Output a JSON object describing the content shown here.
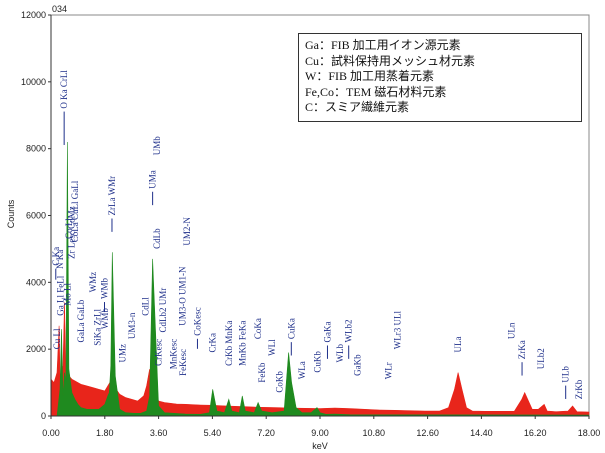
{
  "chart_data": {
    "type": "area",
    "top_label": "034",
    "xlabel": "keV",
    "ylabel": "Counts",
    "xlim": [
      0.0,
      18.0
    ],
    "ylim": [
      0,
      12000
    ],
    "x_ticks": [
      "0.00",
      "1.80",
      "3.60",
      "5.40",
      "7.20",
      "9.00",
      "10.80",
      "12.60",
      "14.40",
      "16.20",
      "18.00"
    ],
    "y_ticks": [
      "0",
      "2000",
      "4000",
      "6000",
      "8000",
      "10000",
      "12000"
    ],
    "colors": {
      "red": "#e8251b",
      "green": "#1f8a1f",
      "label": "#1e2f8a"
    },
    "series": [
      {
        "color": "red",
        "points": [
          [
            0.0,
            1100
          ],
          [
            0.1,
            1000
          ],
          [
            0.2,
            1300
          ],
          [
            0.27,
            2700
          ],
          [
            0.3,
            1200
          ],
          [
            0.4,
            1500
          ],
          [
            0.45,
            3400
          ],
          [
            0.5,
            1400
          ],
          [
            0.6,
            1200
          ],
          [
            0.7,
            1100
          ],
          [
            0.8,
            1050
          ],
          [
            1.0,
            950
          ],
          [
            1.2,
            900
          ],
          [
            1.4,
            850
          ],
          [
            1.6,
            800
          ],
          [
            1.8,
            750
          ],
          [
            1.9,
            900
          ],
          [
            2.0,
            1050
          ],
          [
            2.1,
            900
          ],
          [
            2.3,
            650
          ],
          [
            2.5,
            550
          ],
          [
            2.7,
            500
          ],
          [
            2.9,
            450
          ],
          [
            3.1,
            600
          ],
          [
            3.2,
            900
          ],
          [
            3.3,
            1400
          ],
          [
            3.4,
            900
          ],
          [
            3.6,
            450
          ],
          [
            3.8,
            400
          ],
          [
            4.0,
            380
          ],
          [
            4.2,
            360
          ],
          [
            4.5,
            350
          ],
          [
            5.0,
            330
          ],
          [
            5.4,
            320
          ],
          [
            5.9,
            300
          ],
          [
            6.4,
            280
          ],
          [
            7.0,
            260
          ],
          [
            7.5,
            250
          ],
          [
            8.0,
            240
          ],
          [
            8.5,
            230
          ],
          [
            9.0,
            220
          ],
          [
            9.5,
            240
          ],
          [
            10.0,
            220
          ],
          [
            10.5,
            200
          ],
          [
            11.0,
            180
          ],
          [
            11.5,
            170
          ],
          [
            12.0,
            160
          ],
          [
            12.5,
            150
          ],
          [
            13.0,
            150
          ],
          [
            13.3,
            250
          ],
          [
            13.5,
            800
          ],
          [
            13.62,
            1300
          ],
          [
            13.75,
            800
          ],
          [
            13.9,
            250
          ],
          [
            14.1,
            150
          ],
          [
            14.5,
            140
          ],
          [
            15.0,
            140
          ],
          [
            15.5,
            140
          ],
          [
            15.75,
            500
          ],
          [
            15.85,
            700
          ],
          [
            15.95,
            500
          ],
          [
            16.1,
            200
          ],
          [
            16.3,
            200
          ],
          [
            16.5,
            350
          ],
          [
            16.6,
            150
          ],
          [
            16.9,
            130
          ],
          [
            17.3,
            150
          ],
          [
            17.45,
            300
          ],
          [
            17.6,
            130
          ],
          [
            18.0,
            120
          ]
        ]
      },
      {
        "color": "green",
        "points": [
          [
            0.0,
            0
          ],
          [
            0.2,
            0
          ],
          [
            0.3,
            800
          ],
          [
            0.35,
            2600
          ],
          [
            0.4,
            600
          ],
          [
            0.45,
            1300
          ],
          [
            0.5,
            1000
          ],
          [
            0.55,
            8200
          ],
          [
            0.6,
            1400
          ],
          [
            0.7,
            700
          ],
          [
            0.8,
            500
          ],
          [
            0.9,
            350
          ],
          [
            1.0,
            250
          ],
          [
            1.2,
            200
          ],
          [
            1.4,
            200
          ],
          [
            1.6,
            200
          ],
          [
            1.8,
            350
          ],
          [
            1.9,
            600
          ],
          [
            1.95,
            700
          ],
          [
            2.0,
            1500
          ],
          [
            2.05,
            4900
          ],
          [
            2.15,
            1200
          ],
          [
            2.3,
            200
          ],
          [
            2.5,
            100
          ],
          [
            2.8,
            80
          ],
          [
            3.0,
            80
          ],
          [
            3.2,
            150
          ],
          [
            3.3,
            600
          ],
          [
            3.4,
            4700
          ],
          [
            3.5,
            2500
          ],
          [
            3.6,
            300
          ],
          [
            3.8,
            100
          ],
          [
            4.5,
            60
          ],
          [
            5.0,
            50
          ],
          [
            5.3,
            100
          ],
          [
            5.41,
            800
          ],
          [
            5.55,
            150
          ],
          [
            5.8,
            100
          ],
          [
            5.95,
            500
          ],
          [
            6.05,
            150
          ],
          [
            6.3,
            100
          ],
          [
            6.4,
            600
          ],
          [
            6.5,
            150
          ],
          [
            6.8,
            100
          ],
          [
            6.93,
            400
          ],
          [
            7.05,
            150
          ],
          [
            7.4,
            100
          ],
          [
            7.8,
            150
          ],
          [
            7.95,
            1900
          ],
          [
            8.05,
            1000
          ],
          [
            8.2,
            250
          ],
          [
            8.4,
            100
          ],
          [
            8.7,
            100
          ],
          [
            8.9,
            250
          ],
          [
            9.0,
            100
          ],
          [
            9.2,
            50
          ],
          [
            9.5,
            60
          ],
          [
            10.0,
            40
          ],
          [
            18.0,
            30
          ]
        ]
      }
    ],
    "peak_labels": [
      {
        "x": 0.16,
        "y": 4500,
        "h": 330,
        "text": "C Ka"
      },
      {
        "x": 0.3,
        "y": 4400,
        "h": 0,
        "text": "N Ka"
      },
      {
        "x": 0.44,
        "y": 9200,
        "h": 1000,
        "text": "O Ka CrLl"
      },
      {
        "x": 0.32,
        "y": 3000,
        "h": 0,
        "text": "Ga Ll FeLl"
      },
      {
        "x": 0.2,
        "y": 2000,
        "h": 0,
        "text": "Cu Ll"
      },
      {
        "x": 0.55,
        "y": 3300,
        "h": 0,
        "text": "Mo Ll"
      },
      {
        "x": 0.6,
        "y": 5300,
        "h": 0,
        "text": "Co Ll"
      },
      {
        "x": 0.68,
        "y": 4700,
        "h": 0,
        "text": "Zr Lesc CdMz"
      },
      {
        "x": 0.8,
        "y": 5200,
        "h": 0,
        "text": "CoLa CuLl GaLl"
      },
      {
        "x": 1.01,
        "y": 2200,
        "h": 0,
        "text": "GaLa GaLb"
      },
      {
        "x": 1.4,
        "y": 3700,
        "h": 0,
        "text": "WMz"
      },
      {
        "x": 1.55,
        "y": 2100,
        "h": 0,
        "text": "SiKa ZrLl"
      },
      {
        "x": 1.79,
        "y": 3500,
        "h": 300,
        "text": "WMb"
      },
      {
        "x": 1.8,
        "y": 2600,
        "h": 0,
        "text": "WMb"
      },
      {
        "x": 2.04,
        "y": 6000,
        "h": 400,
        "text": "ZrLa WMr"
      },
      {
        "x": 2.4,
        "y": 1600,
        "h": 0,
        "text": "UMz"
      },
      {
        "x": 2.71,
        "y": 2300,
        "h": 0,
        "text": "UM3-n"
      },
      {
        "x": 3.17,
        "y": 3000,
        "h": 0,
        "text": "CdLl"
      },
      {
        "x": 3.4,
        "y": 6800,
        "h": 400,
        "text": "UMa"
      },
      {
        "x": 3.55,
        "y": 7800,
        "h": 0,
        "text": "UMb"
      },
      {
        "x": 3.55,
        "y": 5000,
        "h": 0,
        "text": "CdLb"
      },
      {
        "x": 3.6,
        "y": 1500,
        "h": 0,
        "text": "CrKesc"
      },
      {
        "x": 3.75,
        "y": 2500,
        "h": 0,
        "text": "CdLb2 UMr"
      },
      {
        "x": 4.1,
        "y": 1400,
        "h": 0,
        "text": "MnKesc"
      },
      {
        "x": 4.4,
        "y": 2700,
        "h": 0,
        "text": "UM3-O UM1-N"
      },
      {
        "x": 4.42,
        "y": 1200,
        "h": 0,
        "text": "FeKesc"
      },
      {
        "x": 4.55,
        "y": 5100,
        "h": 0,
        "text": "UM2-N"
      },
      {
        "x": 4.9,
        "y": 2400,
        "h": 300,
        "text": "CoKesc"
      },
      {
        "x": 5.41,
        "y": 1900,
        "h": 0,
        "text": "CrKa"
      },
      {
        "x": 5.95,
        "y": 1500,
        "h": 0,
        "text": "CrKb MnKa"
      },
      {
        "x": 6.4,
        "y": 1500,
        "h": 0,
        "text": "MnKb FeKa"
      },
      {
        "x": 6.93,
        "y": 2300,
        "h": 0,
        "text": "CoKa"
      },
      {
        "x": 7.06,
        "y": 1000,
        "h": 0,
        "text": "FeKb"
      },
      {
        "x": 7.4,
        "y": 1800,
        "h": 0,
        "text": "WLl"
      },
      {
        "x": 7.65,
        "y": 700,
        "h": 0,
        "text": "CoKb"
      },
      {
        "x": 8.04,
        "y": 2300,
        "h": 400,
        "text": "CuKa"
      },
      {
        "x": 8.4,
        "y": 1100,
        "h": 0,
        "text": "WLa"
      },
      {
        "x": 8.91,
        "y": 1300,
        "h": 0,
        "text": "CuKb"
      },
      {
        "x": 9.25,
        "y": 2200,
        "h": 400,
        "text": "GaKa"
      },
      {
        "x": 9.67,
        "y": 1600,
        "h": 0,
        "text": "WLb"
      },
      {
        "x": 9.96,
        "y": 2200,
        "h": 400,
        "text": "WLb2"
      },
      {
        "x": 10.26,
        "y": 1200,
        "h": 0,
        "text": "GaKb"
      },
      {
        "x": 11.29,
        "y": 1100,
        "h": 0,
        "text": "WLr"
      },
      {
        "x": 11.6,
        "y": 2000,
        "h": 0,
        "text": "WLr3 ULl"
      },
      {
        "x": 13.62,
        "y": 1900,
        "h": 0,
        "text": "ULa"
      },
      {
        "x": 15.4,
        "y": 2300,
        "h": 0,
        "text": "ULn"
      },
      {
        "x": 15.76,
        "y": 1700,
        "h": 400,
        "text": "ZrKa"
      },
      {
        "x": 16.4,
        "y": 1400,
        "h": 0,
        "text": "ULb2"
      },
      {
        "x": 17.22,
        "y": 1000,
        "h": 400,
        "text": "ULb"
      },
      {
        "x": 17.67,
        "y": 500,
        "h": 0,
        "text": "ZrKb"
      }
    ]
  },
  "legend": {
    "lines": [
      "Ga：FIB 加工用イオン源元素",
      "Cu：試料保持用メッシュ材元素",
      "W：FIB 加工用蒸着元素",
      "Fe,Co：TEM 磁石材料元素",
      "C：スミア繊維元素"
    ]
  }
}
